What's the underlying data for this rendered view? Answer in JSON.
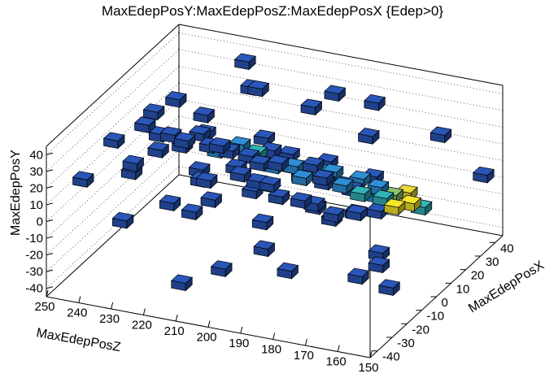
{
  "title": "MaxEdepPosY:MaxEdepPosZ:MaxEdepPosX {Edep>0}",
  "chart_data": {
    "type": "scatter3d-box",
    "title": "MaxEdepPosY:MaxEdepPosZ:MaxEdepPosX {Edep>0}",
    "xlabel": "MaxEdepPosZ",
    "ylabel": "MaxEdepPosX",
    "zlabel": "MaxEdepPosY",
    "xlim": [
      150,
      250
    ],
    "ylim": [
      -45,
      45
    ],
    "zlim": [
      -45,
      45
    ],
    "xticks": [
      250,
      240,
      230,
      220,
      210,
      200,
      190,
      180,
      170,
      160,
      150
    ],
    "yticks": [
      -40,
      -30,
      -20,
      -10,
      0,
      10,
      20,
      30,
      40
    ],
    "zticks": [
      40,
      30,
      20,
      10,
      0,
      -10,
      -20,
      -30,
      -40
    ],
    "color_scale": [
      "#1f2a8c",
      "#2a56b8",
      "#2f8fd6",
      "#31b3b8",
      "#8ec470",
      "#e8d83a",
      "#f5e82a"
    ],
    "grid": true,
    "points": [
      {
        "z": 158,
        "x": 0,
        "y": 8,
        "c": 6
      },
      {
        "z": 160,
        "x": 2,
        "y": 12,
        "c": 5
      },
      {
        "z": 162,
        "x": -2,
        "y": 6,
        "c": 6
      },
      {
        "z": 164,
        "x": 1,
        "y": 10,
        "c": 4
      },
      {
        "z": 156,
        "x": 3,
        "y": 4,
        "c": 3
      },
      {
        "z": 166,
        "x": -1,
        "y": 9,
        "c": 3
      },
      {
        "z": 168,
        "x": 0,
        "y": 14,
        "c": 2
      },
      {
        "z": 170,
        "x": 2,
        "y": 7,
        "c": 2
      },
      {
        "z": 172,
        "x": -3,
        "y": 11,
        "c": 3
      },
      {
        "z": 174,
        "x": 1,
        "y": 16,
        "c": 2
      },
      {
        "z": 176,
        "x": 0,
        "y": 10,
        "c": 1
      },
      {
        "z": 178,
        "x": -2,
        "y": 13,
        "c": 2
      },
      {
        "z": 180,
        "x": 3,
        "y": 9,
        "c": 1
      },
      {
        "z": 182,
        "x": 0,
        "y": 18,
        "c": 2
      },
      {
        "z": 184,
        "x": -1,
        "y": 12,
        "c": 1
      },
      {
        "z": 186,
        "x": 2,
        "y": 15,
        "c": 3
      },
      {
        "z": 188,
        "x": 0,
        "y": 20,
        "c": 1
      },
      {
        "z": 190,
        "x": -3,
        "y": 14,
        "c": 2
      },
      {
        "z": 192,
        "x": 1,
        "y": 11,
        "c": 1
      },
      {
        "z": 194,
        "x": 0,
        "y": 17,
        "c": 2
      },
      {
        "z": 196,
        "x": 4,
        "y": 13,
        "c": 1
      },
      {
        "z": 198,
        "x": -2,
        "y": 19,
        "c": 1
      },
      {
        "z": 200,
        "x": 0,
        "y": 15,
        "c": 2
      },
      {
        "z": 202,
        "x": 2,
        "y": 22,
        "c": 1
      },
      {
        "z": 204,
        "x": -1,
        "y": 16,
        "c": 1
      },
      {
        "z": 206,
        "x": 1,
        "y": 20,
        "c": 3
      },
      {
        "z": 208,
        "x": 0,
        "y": 18,
        "c": 1
      },
      {
        "z": 210,
        "x": -4,
        "y": 14,
        "c": 1
      },
      {
        "z": 212,
        "x": 3,
        "y": 21,
        "c": 2
      },
      {
        "z": 214,
        "x": 0,
        "y": 19,
        "c": 1
      },
      {
        "z": 216,
        "x": -2,
        "y": 23,
        "c": 1
      },
      {
        "z": 218,
        "x": 1,
        "y": 17,
        "c": 2
      },
      {
        "z": 220,
        "x": 0,
        "y": 20,
        "c": 1
      },
      {
        "z": 224,
        "x": 2,
        "y": 24,
        "c": 1
      },
      {
        "z": 228,
        "x": -1,
        "y": 18,
        "c": 1
      },
      {
        "z": 232,
        "x": 0,
        "y": 22,
        "c": 1
      },
      {
        "z": 236,
        "x": 1,
        "y": 20,
        "c": 1
      },
      {
        "z": 240,
        "x": 0,
        "y": 25,
        "c": 1
      },
      {
        "z": 170,
        "x": -10,
        "y": 6,
        "c": 1
      },
      {
        "z": 175,
        "x": 12,
        "y": 8,
        "c": 1
      },
      {
        "z": 185,
        "x": -15,
        "y": 12,
        "c": 1
      },
      {
        "z": 190,
        "x": 14,
        "y": 10,
        "c": 1
      },
      {
        "z": 195,
        "x": -8,
        "y": 5,
        "c": 1
      },
      {
        "z": 200,
        "x": 10,
        "y": 14,
        "c": 1
      },
      {
        "z": 205,
        "x": -12,
        "y": 18,
        "c": 1
      },
      {
        "z": 210,
        "x": 15,
        "y": 16,
        "c": 1
      },
      {
        "z": 215,
        "x": -18,
        "y": 22,
        "c": 1
      },
      {
        "z": 220,
        "x": 8,
        "y": 12,
        "c": 1
      },
      {
        "z": 225,
        "x": -6,
        "y": 26,
        "c": 1
      },
      {
        "z": 230,
        "x": 18,
        "y": 20,
        "c": 1
      },
      {
        "z": 235,
        "x": -20,
        "y": 15,
        "c": 1
      },
      {
        "z": 240,
        "x": 6,
        "y": 28,
        "c": 1
      },
      {
        "z": 245,
        "x": -10,
        "y": 22,
        "c": 1
      },
      {
        "z": 180,
        "x": 20,
        "y": 24,
        "c": 1
      },
      {
        "z": 190,
        "x": -25,
        "y": 28,
        "c": 1
      },
      {
        "z": 200,
        "x": 25,
        "y": 30,
        "c": 1
      },
      {
        "z": 210,
        "x": -28,
        "y": 26,
        "c": 1
      },
      {
        "z": 220,
        "x": 28,
        "y": 32,
        "c": 1
      },
      {
        "z": 230,
        "x": -30,
        "y": 30,
        "c": 1
      },
      {
        "z": 175,
        "x": -22,
        "y": 35,
        "c": 1
      },
      {
        "z": 195,
        "x": 30,
        "y": 36,
        "c": 1
      },
      {
        "z": 215,
        "x": 22,
        "y": 38,
        "c": 1
      },
      {
        "z": 235,
        "x": 10,
        "y": 34,
        "c": 1
      },
      {
        "z": 205,
        "x": -35,
        "y": 33,
        "c": 1
      },
      {
        "z": 185,
        "x": 35,
        "y": 30,
        "c": 1
      },
      {
        "z": 160,
        "x": 25,
        "y": 28,
        "c": 1
      },
      {
        "z": 168,
        "x": -30,
        "y": 22,
        "c": 1
      },
      {
        "z": 225,
        "x": 35,
        "y": 40,
        "c": 1
      },
      {
        "z": 180,
        "x": -5,
        "y": -5,
        "c": 1
      },
      {
        "z": 190,
        "x": 5,
        "y": -8,
        "c": 1
      },
      {
        "z": 200,
        "x": -8,
        "y": -12,
        "c": 1
      },
      {
        "z": 210,
        "x": 10,
        "y": -6,
        "c": 1
      },
      {
        "z": 220,
        "x": -12,
        "y": -10,
        "c": 1
      },
      {
        "z": 175,
        "x": 15,
        "y": -15,
        "c": 1
      },
      {
        "z": 195,
        "x": -18,
        "y": -18,
        "c": 1
      },
      {
        "z": 215,
        "x": 18,
        "y": -20,
        "c": 1
      },
      {
        "z": 230,
        "x": -5,
        "y": -14,
        "c": 1
      },
      {
        "z": 165,
        "x": -20,
        "y": -22,
        "c": 1
      },
      {
        "z": 185,
        "x": 22,
        "y": -25,
        "c": 1
      },
      {
        "z": 205,
        "x": -25,
        "y": -28,
        "c": 1
      },
      {
        "z": 225,
        "x": 12,
        "y": -24,
        "c": 1
      },
      {
        "z": 240,
        "x": -15,
        "y": -20,
        "c": 1
      },
      {
        "z": 170,
        "x": 5,
        "y": -30,
        "c": 1
      },
      {
        "z": 200,
        "x": 28,
        "y": -32,
        "c": 1
      },
      {
        "z": 160,
        "x": -10,
        "y": -35,
        "c": 1
      },
      {
        "z": 215,
        "x": -30,
        "y": -36,
        "c": 1
      },
      {
        "z": 180,
        "x": -35,
        "y": -12,
        "c": 1
      },
      {
        "z": 245,
        "x": 20,
        "y": -8,
        "c": 1
      },
      {
        "z": 235,
        "x": 30,
        "y": -2,
        "c": 1
      },
      {
        "z": 155,
        "x": -28,
        "y": -5,
        "c": 1
      },
      {
        "z": 250,
        "x": -20,
        "y": 5,
        "c": 1
      },
      {
        "z": 150,
        "x": 32,
        "y": 2,
        "c": 1
      }
    ]
  }
}
